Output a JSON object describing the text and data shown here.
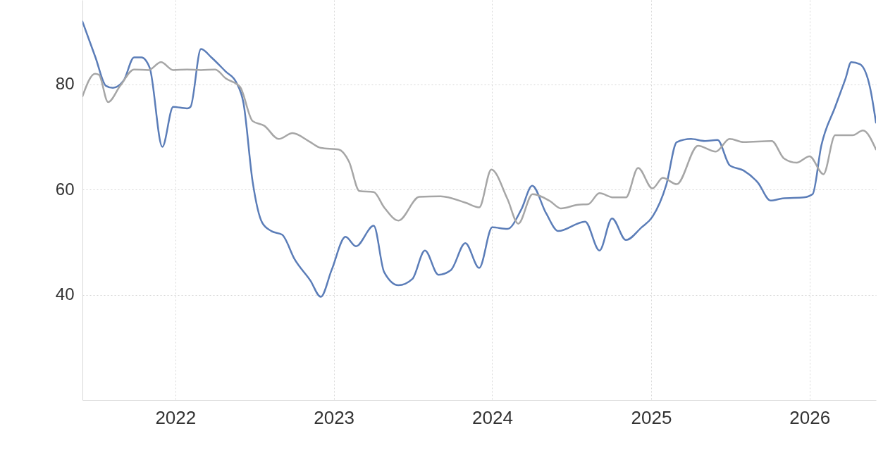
{
  "chart_data": {
    "type": "line",
    "xlim": [
      "2021-06-01",
      "2026-06-03"
    ],
    "ylim": [
      20,
      96
    ],
    "xticks": [
      "2022",
      "2023",
      "2024",
      "2025",
      "2026"
    ],
    "yticks": [
      40,
      60,
      80
    ],
    "grid": true,
    "marker": "none",
    "line_style": "solid",
    "series": [
      {
        "color": "#5b7db8",
        "x": [
          "2021-06-01",
          "2021-07-01",
          "2021-07-25",
          "2021-08-10",
          "2021-09-04",
          "2021-09-28",
          "2021-10-15",
          "2021-11-03",
          "2021-12-02",
          "2021-12-27",
          "2022-01-28",
          "2022-02-05",
          "2022-03-01",
          "2022-03-25",
          "2022-04-27",
          "2022-05-21",
          "2022-06-07",
          "2022-06-28",
          "2022-07-20",
          "2022-08-10",
          "2022-09-04",
          "2022-10-03",
          "2022-11-08",
          "2022-12-02",
          "2022-12-27",
          "2023-01-28",
          "2023-02-21",
          "2023-04-03",
          "2023-04-27",
          "2023-05-30",
          "2023-07-01",
          "2023-07-30",
          "2023-08-30",
          "2023-09-28",
          "2023-10-31",
          "2023-12-02",
          "2024-01-01",
          "2024-02-05",
          "2024-03-08",
          "2024-04-02",
          "2024-05-04",
          "2024-06-01",
          "2024-08-02",
          "2024-09-04",
          "2024-10-03",
          "2024-11-04",
          "2024-12-10",
          "2025-01-04",
          "2025-02-05",
          "2025-03-01",
          "2025-04-03",
          "2025-05-05",
          "2025-06-03",
          "2025-07-01",
          "2025-08-02",
          "2025-09-04",
          "2025-10-03",
          "2025-10-31",
          "2025-12-19",
          "2026-01-08",
          "2026-01-28",
          "2026-03-01",
          "2026-03-25",
          "2026-04-07",
          "2026-04-27",
          "2026-05-21",
          "2026-06-03"
        ],
        "values": [
          91.9,
          85.1,
          79.7,
          79.3,
          80.7,
          85.1,
          85.1,
          83.1,
          68.1,
          75.7,
          75.4,
          75.7,
          86.7,
          85.1,
          82.4,
          80.4,
          76.4,
          61.5,
          53.7,
          52.1,
          51.4,
          46.7,
          42.7,
          39.6,
          44.7,
          51.0,
          49.2,
          53.1,
          44.3,
          41.8,
          43.0,
          48.4,
          43.8,
          44.7,
          49.8,
          45.1,
          52.8,
          52.5,
          56.2,
          60.7,
          55.5,
          52.1,
          53.9,
          48.4,
          54.5,
          50.4,
          52.8,
          54.8,
          60.9,
          69.0,
          69.6,
          69.2,
          69.4,
          64.6,
          63.6,
          61.3,
          57.9,
          58.3,
          58.5,
          59.1,
          68.3,
          75.7,
          81.1,
          84.2,
          83.8,
          79.1,
          72.7
        ]
      },
      {
        "color": "#a6a6a6",
        "x": [
          "2021-06-01",
          "2021-06-30",
          "2021-07-09",
          "2021-07-30",
          "2021-08-27",
          "2021-09-28",
          "2021-10-31",
          "2021-11-29",
          "2021-12-27",
          "2022-01-28",
          "2022-03-01",
          "2022-04-03",
          "2022-04-27",
          "2022-05-30",
          "2022-06-28",
          "2022-07-25",
          "2022-08-27",
          "2022-09-28",
          "2022-11-04",
          "2022-12-02",
          "2023-01-12",
          "2023-02-05",
          "2023-03-01",
          "2023-04-03",
          "2023-04-27",
          "2023-05-30",
          "2023-07-17",
          "2023-09-04",
          "2023-10-31",
          "2023-12-02",
          "2023-12-30",
          "2024-02-05",
          "2024-03-01",
          "2024-04-03",
          "2024-05-13",
          "2024-06-07",
          "2024-07-17",
          "2024-08-09",
          "2024-09-04",
          "2024-10-06",
          "2024-11-04",
          "2024-12-02",
          "2025-01-04",
          "2025-01-28",
          "2025-03-01",
          "2025-04-19",
          "2025-05-30",
          "2025-07-01",
          "2025-08-02",
          "2025-10-06",
          "2025-11-03",
          "2025-12-02",
          "2026-01-01",
          "2026-02-02",
          "2026-03-01",
          "2026-04-10",
          "2026-05-04",
          "2026-06-03"
        ],
        "values": [
          77.7,
          82.0,
          81.8,
          76.6,
          79.7,
          82.8,
          82.7,
          84.2,
          82.7,
          82.8,
          82.7,
          82.8,
          81.1,
          79.5,
          73.0,
          72.1,
          69.6,
          70.7,
          69.2,
          67.9,
          67.6,
          65.3,
          59.7,
          59.5,
          56.6,
          54.1,
          58.6,
          58.7,
          57.5,
          56.6,
          63.8,
          58.2,
          53.5,
          59.1,
          57.8,
          56.4,
          57.1,
          57.2,
          59.3,
          58.5,
          58.5,
          64.1,
          60.2,
          62.2,
          61.0,
          68.3,
          67.2,
          69.6,
          69.0,
          69.2,
          65.9,
          65.1,
          66.3,
          62.9,
          70.3,
          70.3,
          71.2,
          67.6
        ]
      }
    ]
  }
}
